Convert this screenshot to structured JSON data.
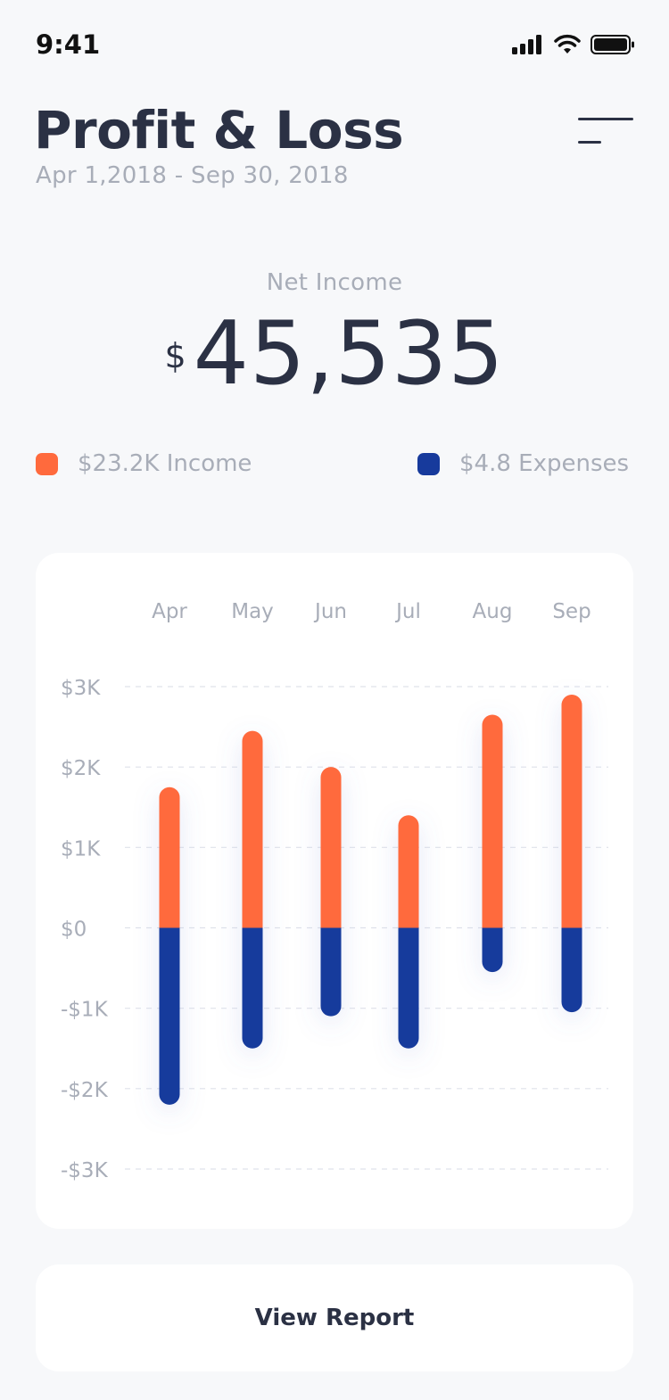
{
  "status_bar": {
    "time": "9:41",
    "icons": [
      "signal-icon",
      "wifi-icon",
      "battery-icon"
    ]
  },
  "header": {
    "title": "Profit & Loss",
    "date_range": "Apr 1,2018 - Sep 30, 2018",
    "menu_icon": "menu-icon"
  },
  "summary": {
    "label": "Net Income",
    "currency": "$",
    "amount": "45,535"
  },
  "legend": {
    "income": "$23.2K Income",
    "expenses": "$4.8 Expenses"
  },
  "colors": {
    "income": "#ff6a3d",
    "expenses": "#173a9c",
    "text_dark": "#2b3144",
    "text_muted": "#a8adb8"
  },
  "chart_data": {
    "type": "bar",
    "categories": [
      "Apr",
      "May",
      "Jun",
      "Jul",
      "Aug",
      "Sep"
    ],
    "series": [
      {
        "name": "Income",
        "values": [
          1750,
          2450,
          2000,
          1400,
          2650,
          2900
        ]
      },
      {
        "name": "Expenses",
        "values": [
          -2200,
          -1500,
          -1100,
          -1500,
          -550,
          -1050
        ]
      }
    ],
    "y_ticks": [
      "$3K",
      "$2K",
      "$1K",
      "$0",
      "-$1K",
      "-$2K",
      "-$3K"
    ],
    "ylim": [
      -3000,
      3000
    ],
    "grid": true,
    "legend_position": "top"
  },
  "actions": {
    "view_report": "View Report"
  }
}
